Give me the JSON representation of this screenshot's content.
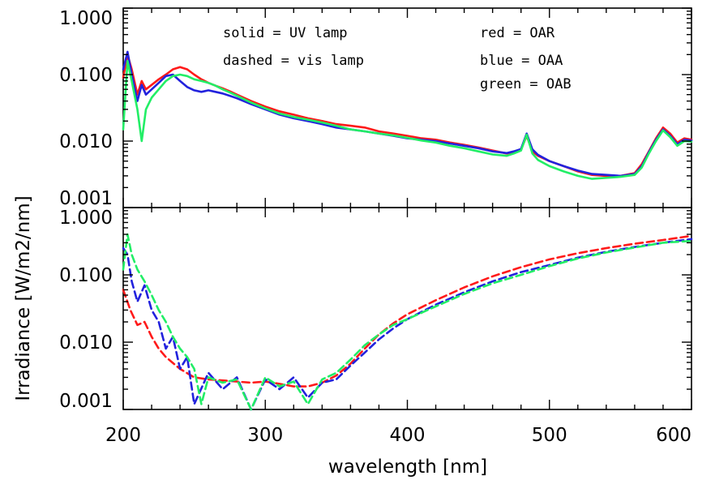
{
  "chart_data": [
    {
      "type": "line",
      "panel": "top",
      "xlim": [
        200,
        600
      ],
      "ylim": [
        0.001,
        1.0
      ],
      "yscale": "log",
      "grid": false,
      "ytick_labels": [
        "1.000",
        "0.100",
        "0.010",
        "0.001"
      ],
      "ytick_values": [
        1.0,
        0.1,
        0.01,
        0.001
      ],
      "annotations": [
        "solid = UV lamp",
        "dashed = vis lamp",
        "red = OAR",
        "blue = OAA",
        "green = OAB"
      ],
      "series": [
        {
          "color": "#ff1a1a",
          "style": "solid",
          "x": [
            200,
            203,
            206,
            210,
            213,
            216,
            220,
            225,
            230,
            235,
            240,
            245,
            250,
            255,
            260,
            265,
            270,
            275,
            280,
            290,
            300,
            310,
            320,
            330,
            340,
            350,
            360,
            370,
            380,
            390,
            400,
            410,
            420,
            430,
            440,
            450,
            460,
            470,
            475,
            480,
            484,
            488,
            492,
            500,
            510,
            520,
            530,
            540,
            550,
            560,
            565,
            570,
            575,
            580,
            585,
            590,
            595,
            600
          ],
          "y": [
            0.09,
            0.2,
            0.12,
            0.05,
            0.08,
            0.06,
            0.07,
            0.085,
            0.1,
            0.12,
            0.13,
            0.12,
            0.1,
            0.085,
            0.075,
            0.068,
            0.062,
            0.056,
            0.05,
            0.04,
            0.033,
            0.028,
            0.025,
            0.022,
            0.02,
            0.018,
            0.017,
            0.016,
            0.014,
            0.013,
            0.012,
            0.011,
            0.0105,
            0.0095,
            0.0088,
            0.008,
            0.0072,
            0.0065,
            0.0068,
            0.0075,
            0.012,
            0.007,
            0.006,
            0.005,
            0.0042,
            0.0035,
            0.0031,
            0.003,
            0.003,
            0.0033,
            0.0045,
            0.007,
            0.011,
            0.016,
            0.013,
            0.0095,
            0.011,
            0.0105
          ]
        },
        {
          "color": "#2222dd",
          "style": "solid",
          "x": [
            200,
            203,
            206,
            210,
            213,
            216,
            220,
            225,
            230,
            235,
            240,
            245,
            250,
            255,
            260,
            265,
            270,
            275,
            280,
            290,
            300,
            310,
            320,
            330,
            340,
            350,
            360,
            370,
            380,
            390,
            400,
            410,
            420,
            430,
            440,
            450,
            460,
            470,
            475,
            480,
            484,
            488,
            492,
            500,
            510,
            520,
            530,
            540,
            550,
            560,
            565,
            570,
            575,
            580,
            585,
            590,
            595,
            600
          ],
          "y": [
            0.12,
            0.22,
            0.1,
            0.04,
            0.07,
            0.05,
            0.06,
            0.075,
            0.095,
            0.1,
            0.08,
            0.065,
            0.058,
            0.055,
            0.058,
            0.055,
            0.052,
            0.048,
            0.044,
            0.036,
            0.03,
            0.025,
            0.022,
            0.02,
            0.018,
            0.016,
            0.015,
            0.014,
            0.013,
            0.012,
            0.011,
            0.0105,
            0.01,
            0.0092,
            0.0085,
            0.0078,
            0.007,
            0.0066,
            0.007,
            0.0076,
            0.013,
            0.0075,
            0.0062,
            0.005,
            0.0042,
            0.0036,
            0.0032,
            0.0031,
            0.003,
            0.0032,
            0.0042,
            0.0068,
            0.0105,
            0.015,
            0.012,
            0.009,
            0.0105,
            0.0102
          ]
        },
        {
          "color": "#22ee66",
          "style": "solid",
          "x": [
            200,
            203,
            206,
            210,
            213,
            216,
            220,
            225,
            230,
            235,
            240,
            245,
            250,
            255,
            260,
            265,
            270,
            275,
            280,
            290,
            300,
            310,
            320,
            330,
            340,
            350,
            360,
            370,
            380,
            390,
            400,
            410,
            420,
            430,
            440,
            450,
            460,
            470,
            475,
            480,
            484,
            488,
            492,
            500,
            510,
            520,
            530,
            540,
            550,
            560,
            565,
            570,
            575,
            580,
            585,
            590,
            595,
            600
          ],
          "y": [
            0.015,
            0.16,
            0.08,
            0.03,
            0.01,
            0.03,
            0.045,
            0.06,
            0.08,
            0.095,
            0.1,
            0.095,
            0.085,
            0.08,
            0.075,
            0.068,
            0.06,
            0.054,
            0.048,
            0.038,
            0.031,
            0.026,
            0.023,
            0.021,
            0.019,
            0.017,
            0.015,
            0.014,
            0.013,
            0.0122,
            0.0112,
            0.0102,
            0.0095,
            0.0085,
            0.0078,
            0.007,
            0.0063,
            0.006,
            0.0065,
            0.0072,
            0.0125,
            0.0065,
            0.0052,
            0.0042,
            0.0035,
            0.003,
            0.0027,
            0.0028,
            0.0029,
            0.0031,
            0.004,
            0.0065,
            0.01,
            0.0145,
            0.0115,
            0.0085,
            0.01,
            0.0098
          ]
        }
      ]
    },
    {
      "type": "line",
      "panel": "bottom",
      "xlim": [
        200,
        600
      ],
      "ylim": [
        0.001,
        1.0
      ],
      "yscale": "log",
      "grid": false,
      "ytick_labels": [
        "1.000",
        "0.100",
        "0.010",
        "0.001"
      ],
      "ytick_values": [
        1.0,
        0.1,
        0.01,
        0.001
      ],
      "series": [
        {
          "color": "#ff1a1a",
          "style": "dashed",
          "x": [
            200,
            205,
            210,
            215,
            220,
            225,
            230,
            240,
            250,
            260,
            270,
            280,
            290,
            300,
            310,
            320,
            330,
            340,
            350,
            360,
            370,
            380,
            390,
            400,
            420,
            440,
            460,
            480,
            500,
            520,
            540,
            560,
            580,
            600
          ],
          "y": [
            0.06,
            0.03,
            0.018,
            0.02,
            0.012,
            0.008,
            0.006,
            0.004,
            0.003,
            0.0028,
            0.0027,
            0.0026,
            0.0025,
            0.0026,
            0.0024,
            0.0022,
            0.0022,
            0.0025,
            0.0032,
            0.0048,
            0.008,
            0.013,
            0.019,
            0.026,
            0.042,
            0.065,
            0.095,
            0.13,
            0.17,
            0.21,
            0.25,
            0.29,
            0.33,
            0.38
          ]
        },
        {
          "color": "#2222dd",
          "style": "dashed",
          "x": [
            200,
            203,
            206,
            210,
            215,
            220,
            225,
            230,
            235,
            240,
            245,
            250,
            260,
            270,
            280,
            290,
            300,
            310,
            320,
            330,
            340,
            350,
            360,
            370,
            380,
            390,
            400,
            420,
            440,
            460,
            480,
            500,
            520,
            540,
            560,
            580,
            600
          ],
          "y": [
            0.25,
            0.2,
            0.08,
            0.04,
            0.07,
            0.03,
            0.02,
            0.008,
            0.012,
            0.004,
            0.006,
            0.0012,
            0.0035,
            0.002,
            0.003,
            0.001,
            0.0028,
            0.002,
            0.003,
            0.0015,
            0.0025,
            0.0028,
            0.0045,
            0.007,
            0.011,
            0.016,
            0.022,
            0.036,
            0.055,
            0.08,
            0.11,
            0.14,
            0.18,
            0.22,
            0.26,
            0.3,
            0.34
          ]
        },
        {
          "color": "#22ee66",
          "style": "dashed",
          "x": [
            200,
            203,
            206,
            210,
            215,
            220,
            225,
            230,
            235,
            240,
            245,
            250,
            255,
            260,
            270,
            280,
            290,
            300,
            310,
            320,
            330,
            340,
            350,
            360,
            370,
            380,
            390,
            400,
            420,
            440,
            460,
            480,
            500,
            520,
            540,
            560,
            580,
            600
          ],
          "y": [
            0.12,
            0.4,
            0.2,
            0.12,
            0.08,
            0.05,
            0.03,
            0.02,
            0.012,
            0.008,
            0.006,
            0.004,
            0.0012,
            0.003,
            0.0025,
            0.0028,
            0.001,
            0.003,
            0.0022,
            0.0026,
            0.0012,
            0.0028,
            0.0035,
            0.0055,
            0.009,
            0.013,
            0.018,
            0.022,
            0.034,
            0.052,
            0.075,
            0.1,
            0.135,
            0.175,
            0.215,
            0.255,
            0.3,
            0.32
          ]
        }
      ]
    }
  ],
  "xaxis": {
    "label": "wavelength [nm]",
    "tick_values": [
      200,
      300,
      400,
      500,
      600
    ],
    "tick_labels": [
      "200",
      "300",
      "400",
      "500",
      "600"
    ]
  },
  "yaxis": {
    "label": "Irradiance [W/m2/nm]"
  }
}
